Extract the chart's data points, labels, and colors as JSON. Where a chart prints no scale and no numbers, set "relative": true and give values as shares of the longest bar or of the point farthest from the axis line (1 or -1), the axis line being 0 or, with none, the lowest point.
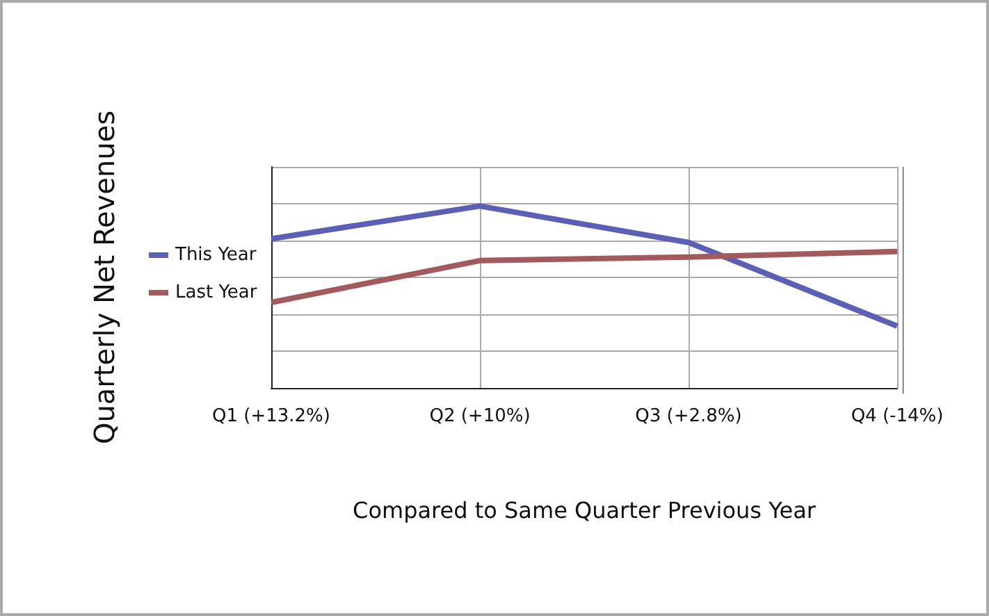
{
  "chart_data": {
    "type": "line",
    "relative": true,
    "ylabel": "Quarterly Net Revenues",
    "xlabel": "Compared to Same Quarter Previous Year",
    "categories": [
      "Q1 (+13.2%)",
      "Q2 (+10%)",
      "Q3 (+2.8%)",
      "Q4 (-14%)"
    ],
    "series": [
      {
        "name": "This Year",
        "color": "#5b5fb8",
        "values": [
          0.82,
          1,
          0.8,
          0.34
        ]
      },
      {
        "name": "Last Year",
        "color": "#a45a5c",
        "values": [
          0.47,
          0.7,
          0.72,
          0.75
        ]
      }
    ],
    "grid": true,
    "legend": "left",
    "marker": "none",
    "line_style": "solid"
  }
}
